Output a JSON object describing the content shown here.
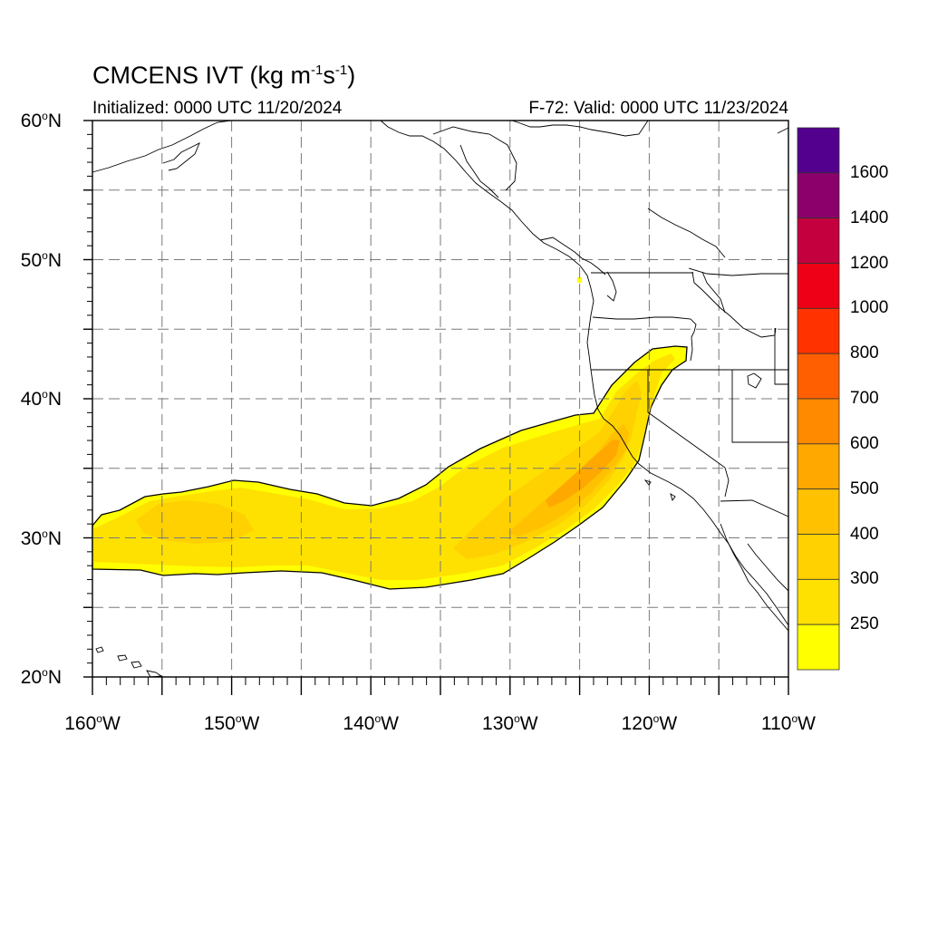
{
  "title": {
    "main": "CMCENS IVT (kg m",
    "sup1": "-1",
    "mid": "s",
    "sup2": "-1",
    "end": ")"
  },
  "subtitle_left": "Initialized: 0000 UTC 11/20/2024",
  "subtitle_right": "F-72: Valid: 0000 UTC 11/23/2024",
  "degree_symbol": "o",
  "axes": {
    "lat_labels": [
      {
        "value": 60,
        "text": "60",
        "hemi": "N"
      },
      {
        "value": 50,
        "text": "50",
        "hemi": "N"
      },
      {
        "value": 40,
        "text": "40",
        "hemi": "N"
      },
      {
        "value": 30,
        "text": "30",
        "hemi": "N"
      },
      {
        "value": 20,
        "text": "20",
        "hemi": "N"
      }
    ],
    "lon_labels": [
      {
        "value": -160,
        "text": "160",
        "hemi": "W"
      },
      {
        "value": -150,
        "text": "150",
        "hemi": "W"
      },
      {
        "value": -140,
        "text": "140",
        "hemi": "W"
      },
      {
        "value": -130,
        "text": "130",
        "hemi": "W"
      },
      {
        "value": -120,
        "text": "120",
        "hemi": "W"
      },
      {
        "value": -110,
        "text": "110",
        "hemi": "W"
      }
    ],
    "lon_range": [
      -160,
      -110
    ],
    "lat_range": [
      20,
      60
    ],
    "grid": "dashed, every 5 degrees"
  },
  "colorbar": {
    "levels": [
      "",
      "250",
      "300",
      "400",
      "500",
      "600",
      "700",
      "800",
      "1000",
      "1200",
      "1400",
      "1600"
    ],
    "colors": [
      "#ffffff",
      "#ffff00",
      "#ffe100",
      "#ffd100",
      "#ffc100",
      "#ffa800",
      "#ff8a00",
      "#ff5f00",
      "#ff3200",
      "#ee0016",
      "#c4003e",
      "#8b006b",
      "#54008f"
    ]
  },
  "chart_data": {
    "type": "heatmap",
    "variable": "IVT",
    "units": "kg m-1 s-1",
    "atmospheric_river": {
      "description_points_lon_lat": [
        [
          -160,
          29.0
        ],
        [
          -155,
          30.5
        ],
        [
          -150,
          30.5
        ],
        [
          -145,
          29.8
        ],
        [
          -140,
          29.2
        ],
        [
          -135,
          29.5
        ],
        [
          -130,
          30.5
        ],
        [
          -127,
          32.5
        ],
        [
          -124,
          34.5
        ],
        [
          -122,
          37.5
        ],
        [
          -120.5,
          42.0
        ]
      ],
      "max_ivt_category": "600-700",
      "max_region_lon_lat": [
        -124.5,
        34.5
      ]
    }
  }
}
